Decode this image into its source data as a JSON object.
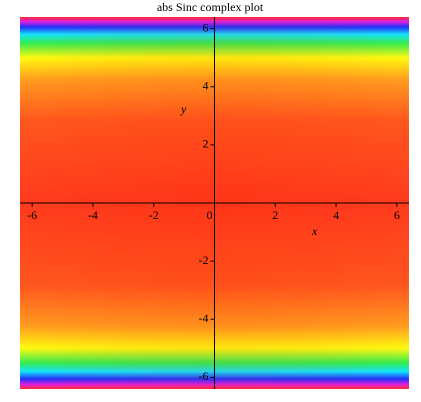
{
  "chart_data": {
    "type": "heatmap",
    "title": "abs Sinc complex plot",
    "x_label": "x",
    "y_label": "y",
    "xlim": [
      -6.4,
      6.4
    ],
    "ylim": [
      -6.4,
      6.4
    ],
    "xticks": [
      -6,
      -4,
      -2,
      0,
      2,
      4,
      6
    ],
    "yticks": [
      -6,
      -4,
      -2,
      2,
      4,
      6
    ]
  }
}
